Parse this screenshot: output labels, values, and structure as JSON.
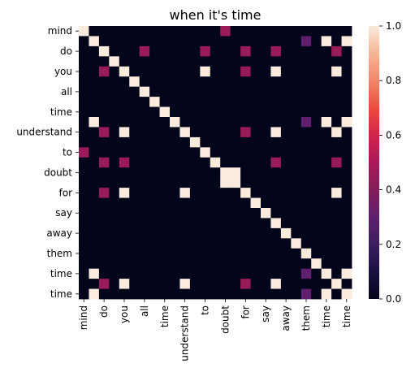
{
  "chart_data": {
    "type": "heatmap",
    "title": "when it's time",
    "row_labels": [
      "mind",
      "",
      "do",
      "",
      "you",
      "",
      "all",
      "",
      "time",
      "",
      "understand",
      "",
      "to",
      "",
      "doubt",
      "",
      "for",
      "",
      "say",
      "",
      "away",
      "",
      "them",
      "",
      "time",
      "",
      "time"
    ],
    "col_labels": [
      "mind",
      "",
      "do",
      "",
      "you",
      "",
      "all",
      "",
      "time",
      "",
      "understand",
      "",
      "to",
      "",
      "doubt",
      "",
      "for",
      "",
      "say",
      "",
      "away",
      "",
      "them",
      "",
      "time",
      "",
      "time"
    ],
    "colorbar": {
      "min": 0.0,
      "max": 1.0,
      "ticks": [
        "0.0",
        "0.2",
        "0.4",
        "0.6",
        "0.8",
        "1.0"
      ]
    },
    "values": [
      [
        1,
        0,
        0,
        0,
        0,
        0,
        0,
        0,
        0,
        0,
        0,
        0,
        0,
        0,
        0.45,
        0,
        0,
        0,
        0,
        0,
        0,
        0,
        0,
        0,
        0,
        0,
        0
      ],
      [
        0,
        1,
        0,
        0,
        0,
        0,
        0,
        0,
        0,
        0,
        0,
        0,
        0,
        0,
        0,
        0,
        0,
        0,
        0,
        0,
        0,
        0,
        0.3,
        0,
        1,
        0,
        1
      ],
      [
        0,
        0,
        1,
        0,
        0,
        0,
        0.45,
        0,
        0,
        0,
        0,
        0,
        0.45,
        0,
        0,
        0,
        0.45,
        0,
        0,
        0.45,
        0,
        0,
        0,
        0,
        0,
        0.45,
        0
      ],
      [
        0,
        0,
        0,
        1,
        0,
        0,
        0,
        0,
        0,
        0,
        0,
        0,
        0,
        0,
        0,
        0,
        0,
        0,
        0,
        0,
        0,
        0,
        0,
        0,
        0,
        0,
        0
      ],
      [
        0,
        0,
        0.45,
        0,
        1,
        0,
        0,
        0,
        0,
        0,
        0,
        0,
        1,
        0,
        0,
        0,
        0.45,
        0,
        0,
        1,
        0,
        0,
        0,
        0,
        0,
        1,
        0
      ],
      [
        0,
        0,
        0,
        0,
        0,
        1,
        0,
        0,
        0,
        0,
        0,
        0,
        0,
        0,
        0,
        0,
        0,
        0,
        0,
        0,
        0,
        0,
        0,
        0,
        0,
        0,
        0
      ],
      [
        0,
        0,
        0,
        0,
        0,
        0,
        1,
        0,
        0,
        0,
        0,
        0,
        0,
        0,
        0,
        0,
        0,
        0,
        0,
        0,
        0,
        0,
        0,
        0,
        0,
        0,
        0
      ],
      [
        0,
        0,
        0,
        0,
        0,
        0,
        0,
        1,
        0,
        0,
        0,
        0,
        0,
        0,
        0,
        0,
        0,
        0,
        0,
        0,
        0,
        0,
        0,
        0,
        0,
        0,
        0
      ],
      [
        0,
        0,
        0,
        0,
        0,
        0,
        0,
        0,
        1,
        0,
        0,
        0,
        0,
        0,
        0,
        0,
        0,
        0,
        0,
        0,
        0,
        0,
        0,
        0,
        0,
        0,
        0
      ],
      [
        0,
        1,
        0,
        0,
        0,
        0,
        0,
        0,
        0,
        1,
        0,
        0,
        0,
        0,
        0,
        0,
        0,
        0,
        0,
        0,
        0,
        0,
        0.3,
        0,
        1,
        0,
        1
      ],
      [
        0,
        0,
        0.45,
        0,
        1,
        0,
        0,
        0,
        0,
        0,
        1,
        0,
        0,
        0,
        0,
        0,
        0.45,
        0,
        0,
        1,
        0,
        0,
        0,
        0,
        0,
        1,
        0
      ],
      [
        0,
        0,
        0,
        0,
        0,
        0,
        0,
        0,
        0,
        0,
        0,
        1,
        0,
        0,
        0,
        0,
        0,
        0,
        0,
        0,
        0,
        0,
        0,
        0,
        0,
        0,
        0
      ],
      [
        0.45,
        0,
        0,
        0,
        0,
        0,
        0,
        0,
        0,
        0,
        0,
        0,
        1,
        0,
        0,
        0,
        0,
        0,
        0,
        0,
        0,
        0,
        0,
        0,
        0,
        0,
        0
      ],
      [
        0,
        0,
        0.45,
        0,
        0.45,
        0,
        0,
        0,
        0,
        0,
        0,
        0,
        0,
        1,
        0,
        0,
        0,
        0,
        0,
        0.45,
        0,
        0,
        0,
        0,
        0,
        0.45,
        0
      ],
      [
        0,
        0,
        0,
        0,
        0,
        0,
        0,
        0,
        0,
        0,
        0,
        0,
        0,
        0,
        1,
        1,
        0,
        0,
        0,
        0,
        0,
        0,
        0,
        0,
        0,
        0,
        0
      ],
      [
        0,
        0,
        0,
        0,
        0,
        0,
        0,
        0,
        0,
        0,
        0,
        0,
        0,
        0,
        1,
        1,
        0,
        0,
        0,
        0,
        0,
        0,
        0,
        0,
        0,
        0,
        0
      ],
      [
        0,
        0,
        0.45,
        0,
        1,
        0,
        0,
        0,
        0,
        0,
        1,
        0,
        0,
        0,
        0,
        0,
        1,
        0,
        0,
        0,
        0,
        0,
        0,
        0,
        0,
        1,
        0
      ],
      [
        0,
        0,
        0,
        0,
        0,
        0,
        0,
        0,
        0,
        0,
        0,
        0,
        0,
        0,
        0,
        0,
        0,
        1,
        0,
        0,
        0,
        0,
        0,
        0,
        0,
        0,
        0
      ],
      [
        0,
        0,
        0,
        0,
        0,
        0,
        0,
        0,
        0,
        0,
        0,
        0,
        0,
        0,
        0,
        0,
        0,
        0,
        1,
        0,
        0,
        0,
        0,
        0,
        0,
        0,
        0
      ],
      [
        0,
        0,
        0,
        0,
        0,
        0,
        0,
        0,
        0,
        0,
        0,
        0,
        0,
        0,
        0,
        0,
        0,
        0,
        0,
        1,
        0,
        0,
        0,
        0,
        0,
        0,
        0
      ],
      [
        0,
        0,
        0,
        0,
        0,
        0,
        0,
        0,
        0,
        0,
        0,
        0,
        0,
        0,
        0,
        0,
        0,
        0,
        0,
        0,
        1,
        0,
        0,
        0,
        0,
        0,
        0
      ],
      [
        0,
        0,
        0,
        0,
        0,
        0,
        0,
        0,
        0,
        0,
        0,
        0,
        0,
        0,
        0,
        0,
        0,
        0,
        0,
        0,
        0,
        1,
        0,
        0,
        0,
        0,
        0
      ],
      [
        0,
        0,
        0,
        0,
        0,
        0,
        0,
        0,
        0,
        0,
        0,
        0,
        0,
        0,
        0,
        0,
        0,
        0,
        0,
        0,
        0,
        0,
        1,
        0,
        0,
        0,
        0
      ],
      [
        0,
        0,
        0,
        0,
        0,
        0,
        0,
        0,
        0,
        0,
        0,
        0,
        0,
        0,
        0,
        0,
        0,
        0,
        0,
        0,
        0,
        0,
        0,
        1,
        0,
        0,
        0
      ],
      [
        0,
        1,
        0,
        0,
        0,
        0,
        0,
        0,
        0,
        0,
        0,
        0,
        0,
        0,
        0,
        0,
        0,
        0,
        0,
        0,
        0,
        0,
        0.3,
        0,
        1,
        0,
        1
      ],
      [
        0,
        0,
        0.45,
        0,
        1,
        0,
        0,
        0,
        0,
        0,
        1,
        0,
        0,
        0,
        0,
        0,
        0.45,
        0,
        0,
        1,
        0,
        0,
        0,
        0,
        0,
        1,
        0
      ],
      [
        0,
        1,
        0,
        0,
        0,
        0,
        0,
        0,
        0,
        0,
        0,
        0,
        0,
        0,
        0,
        0,
        0,
        0,
        0,
        0,
        0,
        0,
        0.3,
        0,
        1,
        0,
        1
      ]
    ]
  }
}
